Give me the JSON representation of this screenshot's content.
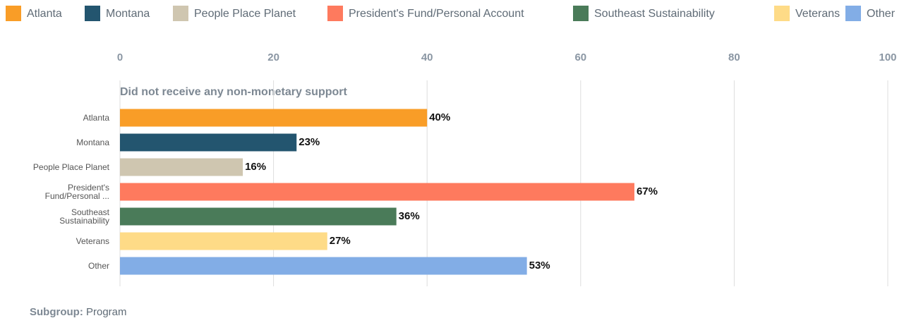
{
  "chart_data": {
    "type": "bar",
    "orientation": "horizontal",
    "legend": [
      {
        "name": "Atlanta",
        "color": "#f99d27"
      },
      {
        "name": "Montana",
        "color": "#23556f"
      },
      {
        "name": "People Place Planet",
        "color": "#cfc6b0"
      },
      {
        "name": "President's Fund/Personal Account",
        "color": "#fe7a5e"
      },
      {
        "name": "Southeast Sustainability",
        "color": "#4a7b59"
      },
      {
        "name": "Veterans",
        "color": "#fedb87"
      },
      {
        "name": "Other",
        "color": "#82ade6"
      }
    ],
    "group_title": "Did not receive any non-monetary support",
    "categories": [
      "Atlanta",
      "Montana",
      "People Place Planet",
      "President's Fund/Personal ...",
      "Southeast Sustainability",
      "Veterans",
      "Other"
    ],
    "values": [
      40,
      23,
      16,
      67,
      36,
      27,
      53
    ],
    "value_labels": [
      "40%",
      "23%",
      "16%",
      "67%",
      "36%",
      "27%",
      "53%"
    ],
    "xlim": [
      0,
      100
    ],
    "xticks": [
      0,
      20,
      40,
      60,
      80,
      100
    ],
    "grid": true,
    "subgroup_label": "Subgroup:",
    "subgroup_value": "Program"
  }
}
